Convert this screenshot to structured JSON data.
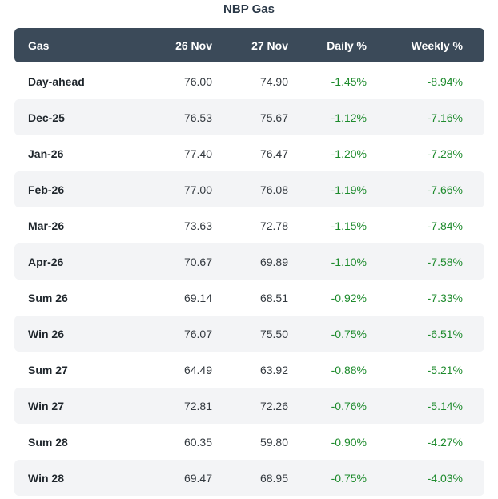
{
  "title": "NBP Gas",
  "colors": {
    "header_bg": "#3b4a59",
    "header_text": "#ffffff",
    "stripe_bg": "#f3f4f6",
    "label_text": "#1f262c",
    "value_text": "#33393f",
    "negative_pct_green": "#1e8b2d",
    "title_text": "#2b3948"
  },
  "table": {
    "headers": [
      "Gas",
      "26 Nov",
      "27 Nov",
      "Daily %",
      "Weekly %"
    ],
    "rows": [
      {
        "label": "Day-ahead",
        "d26": "76.00",
        "d27": "74.90",
        "daily": "-1.45%",
        "weekly": "-8.94%"
      },
      {
        "label": "Dec-25",
        "d26": "76.53",
        "d27": "75.67",
        "daily": "-1.12%",
        "weekly": "-7.16%"
      },
      {
        "label": "Jan-26",
        "d26": "77.40",
        "d27": "76.47",
        "daily": "-1.20%",
        "weekly": "-7.28%"
      },
      {
        "label": "Feb-26",
        "d26": "77.00",
        "d27": "76.08",
        "daily": "-1.19%",
        "weekly": "-7.66%"
      },
      {
        "label": "Mar-26",
        "d26": "73.63",
        "d27": "72.78",
        "daily": "-1.15%",
        "weekly": "-7.84%"
      },
      {
        "label": "Apr-26",
        "d26": "70.67",
        "d27": "69.89",
        "daily": "-1.10%",
        "weekly": "-7.58%"
      },
      {
        "label": "Sum 26",
        "d26": "69.14",
        "d27": "68.51",
        "daily": "-0.92%",
        "weekly": "-7.33%"
      },
      {
        "label": "Win 26",
        "d26": "76.07",
        "d27": "75.50",
        "daily": "-0.75%",
        "weekly": "-6.51%"
      },
      {
        "label": "Sum 27",
        "d26": "64.49",
        "d27": "63.92",
        "daily": "-0.88%",
        "weekly": "-5.21%"
      },
      {
        "label": "Win 27",
        "d26": "72.81",
        "d27": "72.26",
        "daily": "-0.76%",
        "weekly": "-5.14%"
      },
      {
        "label": "Sum 28",
        "d26": "60.35",
        "d27": "59.80",
        "daily": "-0.90%",
        "weekly": "-4.27%"
      },
      {
        "label": "Win 28",
        "d26": "69.47",
        "d27": "68.95",
        "daily": "-0.75%",
        "weekly": "-4.03%"
      }
    ]
  },
  "chart_data": {
    "type": "table",
    "title": "NBP Gas",
    "columns": [
      "Gas",
      "26 Nov",
      "27 Nov",
      "Daily %",
      "Weekly %"
    ],
    "categories": [
      "Day-ahead",
      "Dec-25",
      "Jan-26",
      "Feb-26",
      "Mar-26",
      "Apr-26",
      "Sum 26",
      "Win 26",
      "Sum 27",
      "Win 27",
      "Sum 28",
      "Win 28"
    ],
    "series": [
      {
        "name": "26 Nov",
        "values": [
          76.0,
          76.53,
          77.4,
          77.0,
          73.63,
          70.67,
          69.14,
          76.07,
          64.49,
          72.81,
          60.35,
          69.47
        ]
      },
      {
        "name": "27 Nov",
        "values": [
          74.9,
          75.67,
          76.47,
          76.08,
          72.78,
          69.89,
          68.51,
          75.5,
          63.92,
          72.26,
          59.8,
          68.95
        ]
      },
      {
        "name": "Daily %",
        "values": [
          -1.45,
          -1.12,
          -1.2,
          -1.19,
          -1.15,
          -1.1,
          -0.92,
          -0.75,
          -0.88,
          -0.76,
          -0.9,
          -0.75
        ]
      },
      {
        "name": "Weekly %",
        "values": [
          -8.94,
          -7.16,
          -7.28,
          -7.66,
          -7.84,
          -7.58,
          -7.33,
          -6.51,
          -5.21,
          -5.14,
          -4.27,
          -4.03
        ]
      }
    ],
    "layout_hints": {
      "striped_rows": true,
      "negative_values_colored": "green",
      "numeric_columns_right_aligned": true
    }
  }
}
